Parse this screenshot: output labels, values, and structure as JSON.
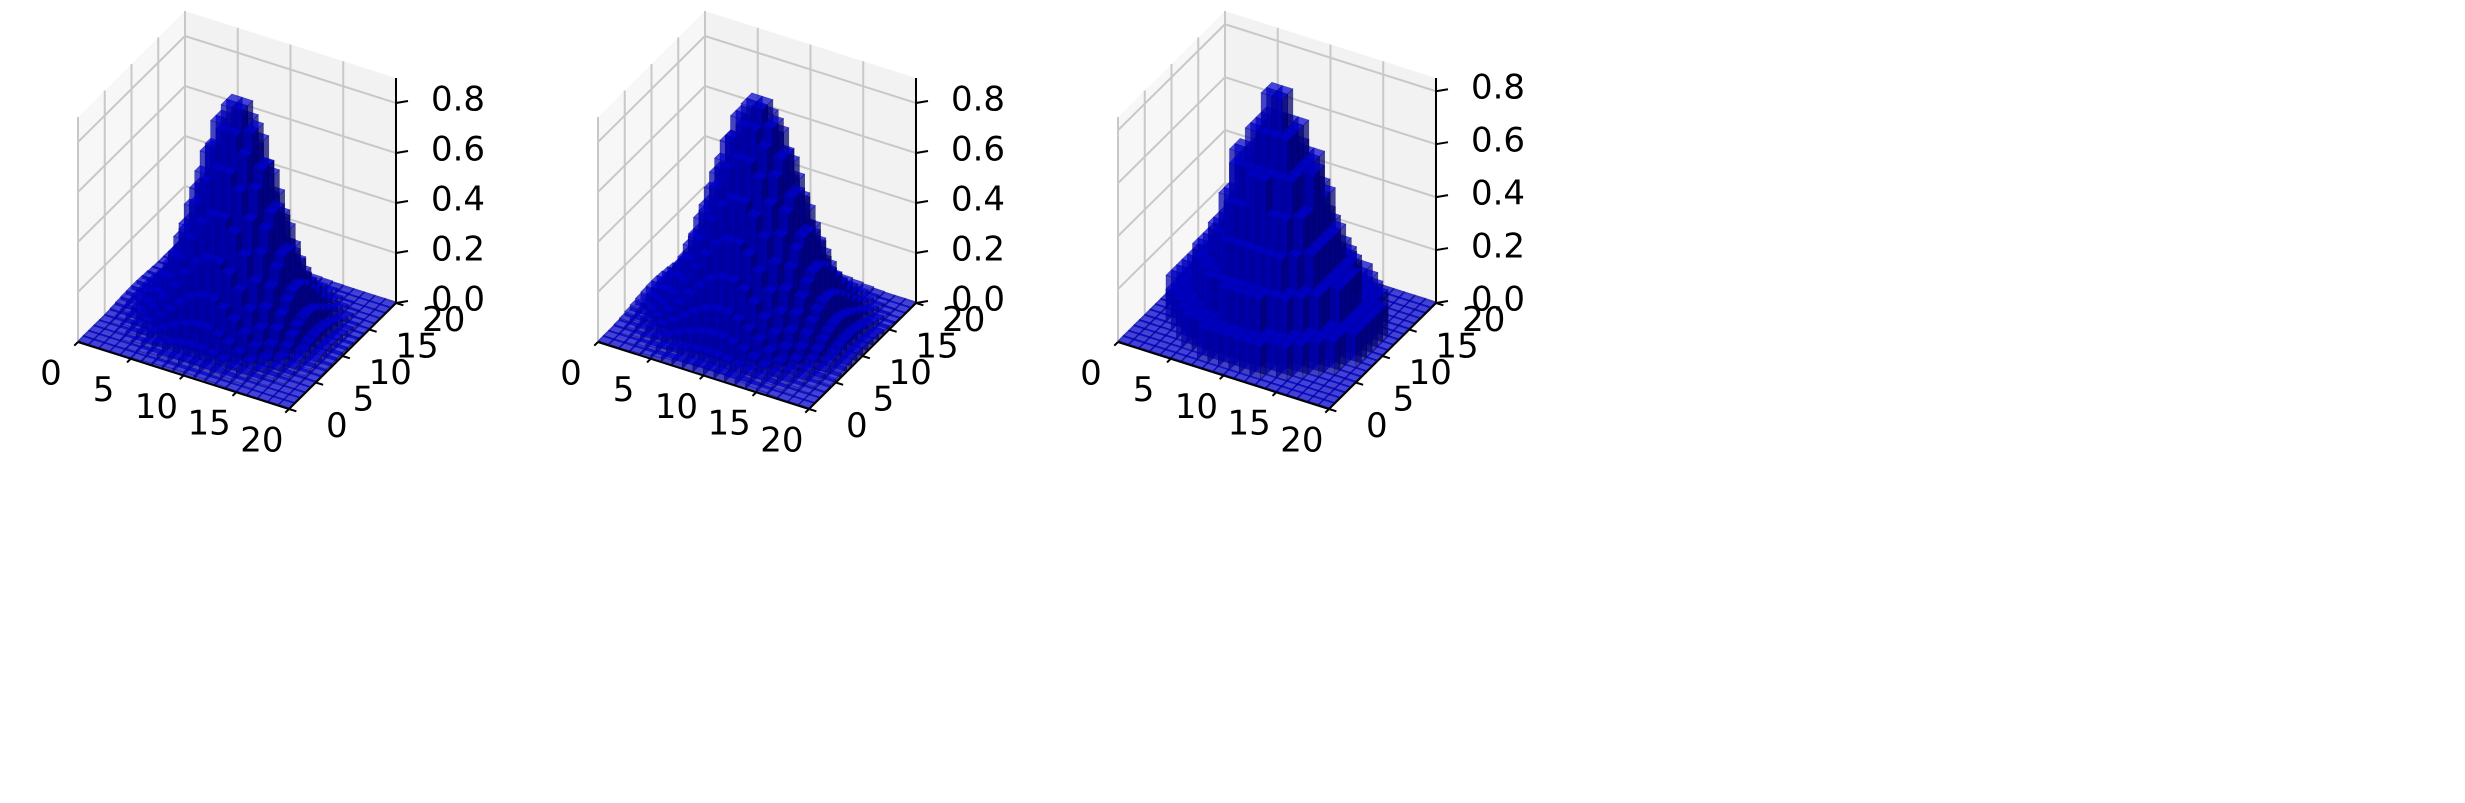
{
  "figure": {
    "background": "#ffffff",
    "pane_colors": {
      "back": "#f2f2f2",
      "left": "#f7f7f7",
      "floor": "#ececec",
      "grid": "#c8c8c8"
    },
    "bar_color": "#0000cc"
  },
  "chart_data": [
    {
      "type": "bar3d",
      "title": "",
      "xlabel": "",
      "ylabel": "",
      "zlabel": "",
      "grid": true,
      "xlim": [
        0,
        20
      ],
      "ylim": [
        0,
        20
      ],
      "zlim": [
        0,
        0.9
      ],
      "xticks": [
        "0",
        "5",
        "10",
        "15",
        "20"
      ],
      "yticks": [
        "0",
        "5",
        "10",
        "15",
        "20"
      ],
      "zticks": [
        "0.0",
        "0.2",
        "0.4",
        "0.6",
        "0.8"
      ],
      "grid_shape": [
        21,
        21
      ],
      "surface": {
        "function": "gaussian",
        "center": [
          10,
          10
        ],
        "peak": 0.9,
        "sigma": 3.3,
        "levels": 0
      }
    },
    {
      "type": "bar3d",
      "title": "",
      "xlabel": "",
      "ylabel": "",
      "zlabel": "",
      "grid": true,
      "xlim": [
        0,
        20
      ],
      "ylim": [
        0,
        20
      ],
      "zlim": [
        0,
        0.9
      ],
      "xticks": [
        "0",
        "5",
        "10",
        "15",
        "20"
      ],
      "yticks": [
        "0",
        "5",
        "10",
        "15",
        "20"
      ],
      "zticks": [
        "0.0",
        "0.2",
        "0.4",
        "0.6",
        "0.8"
      ],
      "grid_shape": [
        21,
        21
      ],
      "surface": {
        "function": "gaussian",
        "center": [
          10,
          10
        ],
        "peak": 0.9,
        "sigma": 3.7,
        "levels": 0
      }
    },
    {
      "type": "bar3d",
      "title": "",
      "xlabel": "",
      "ylabel": "",
      "zlabel": "",
      "grid": true,
      "xlim": [
        0,
        20
      ],
      "ylim": [
        0,
        20
      ],
      "zlim": [
        0,
        0.85
      ],
      "xticks": [
        "0",
        "5",
        "10",
        "15",
        "20"
      ],
      "yticks": [
        "0",
        "5",
        "10",
        "15",
        "20"
      ],
      "zticks": [
        "0.0",
        "0.2",
        "0.4",
        "0.6",
        "0.8"
      ],
      "grid_shape": [
        21,
        21
      ],
      "surface": {
        "function": "gaussian",
        "center": [
          10,
          10
        ],
        "peak": 0.85,
        "sigma": 3.9,
        "levels": 8
      }
    }
  ]
}
